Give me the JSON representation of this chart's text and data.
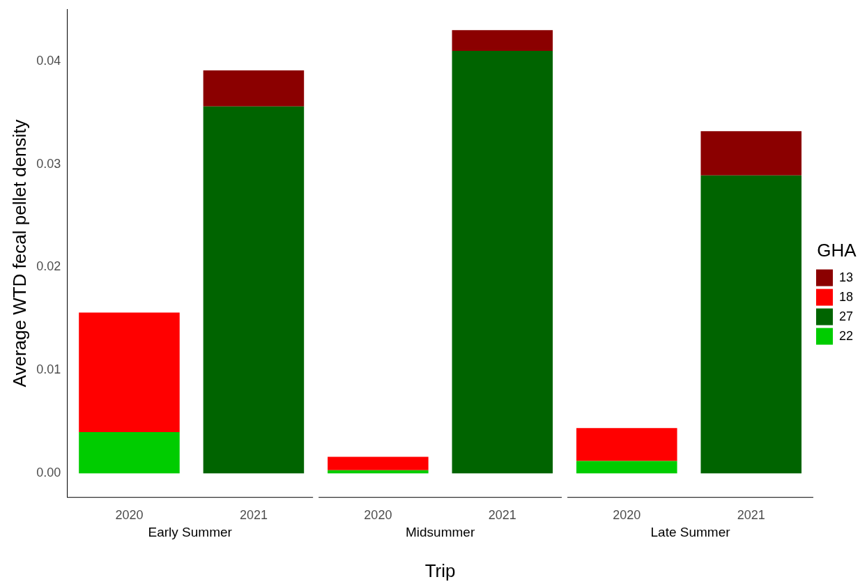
{
  "chart_data": {
    "type": "bar",
    "stacked": true,
    "xlabel": "Trip",
    "ylabel": "Average WTD fecal pellet density",
    "categories": [
      "2020",
      "2021",
      "2020",
      "2021",
      "2020",
      "2021"
    ],
    "ylim": [
      -0.0023,
      0.045
    ],
    "yticks": [
      {
        "value": 0,
        "label": "0.00"
      },
      {
        "value": 0.01,
        "label": "0.01"
      },
      {
        "value": 0.02,
        "label": "0.02"
      },
      {
        "value": 0.03,
        "label": "0.03"
      },
      {
        "value": 0.04,
        "label": "0.04"
      }
    ],
    "grid": false,
    "legend": "right",
    "legend_title": "GHA",
    "annotations": [
      "Early Summer",
      "Midsummer",
      "Late Summer"
    ],
    "series": [
      {
        "name": "22",
        "color": "#00cc00",
        "values": [
          0.004,
          null,
          0.0003,
          null,
          0.0012,
          null
        ]
      },
      {
        "name": "27",
        "color": "#006400",
        "values": [
          null,
          0.0356,
          null,
          0.041,
          null,
          0.0289
        ]
      },
      {
        "name": "18",
        "color": "#ff0000",
        "values": [
          0.0116,
          null,
          0.0013,
          null,
          0.0032,
          null
        ]
      },
      {
        "name": "13",
        "color": "#8b0000",
        "values": [
          null,
          0.0035,
          null,
          0.002,
          null,
          0.0043
        ]
      }
    ]
  }
}
